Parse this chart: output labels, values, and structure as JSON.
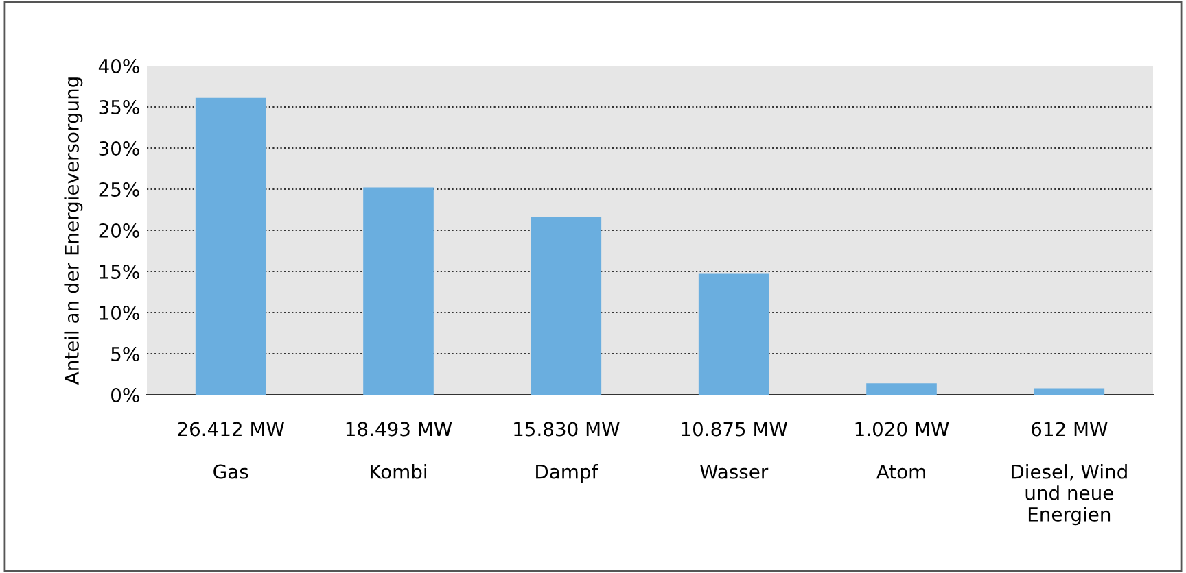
{
  "chart_data": {
    "type": "bar",
    "ylabel": "Anteil an der Energieversorgung",
    "categories": [
      "26.412 MW\n\nGas",
      "18.493 MW\n\nKombi",
      "15.830 MW\n\nDampf",
      "10.875 MW\n\nWasser",
      "1.020 MW\n\nAtom",
      "612 MW\n\nDiesel, Wind\nund neue\nEnergien"
    ],
    "values": [
      36.1,
      25.2,
      21.6,
      14.7,
      1.4,
      0.8
    ],
    "color": "#6aaedf",
    "ylim": [
      0,
      40
    ],
    "yticks": [
      {
        "value": 0,
        "label": "0%"
      },
      {
        "value": 5,
        "label": "5%"
      },
      {
        "value": 10,
        "label": "10%"
      },
      {
        "value": 15,
        "label": "15%"
      },
      {
        "value": 20,
        "label": "20%"
      },
      {
        "value": 25,
        "label": "25%"
      },
      {
        "value": 30,
        "label": "30%"
      },
      {
        "value": 35,
        "label": "35%"
      },
      {
        "value": 40,
        "label": "40%"
      }
    ],
    "grid": "y"
  }
}
